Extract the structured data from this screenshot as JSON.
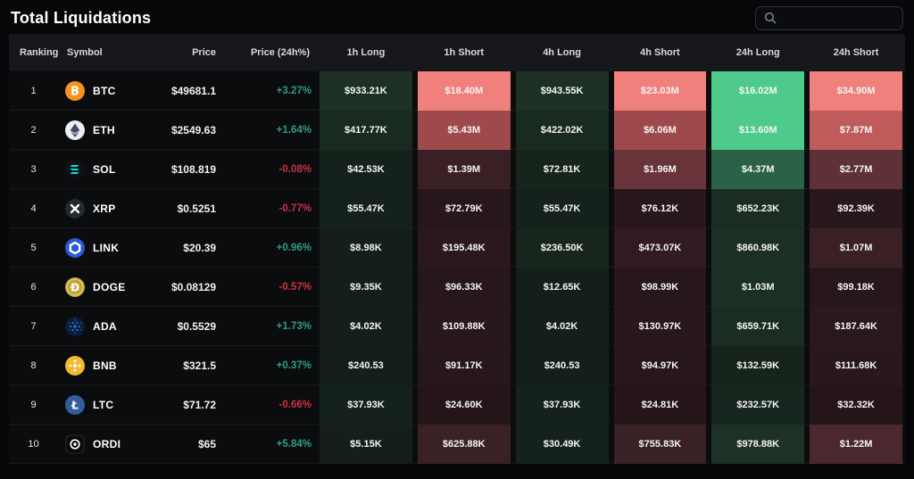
{
  "page": {
    "title": "Total Liquidations"
  },
  "search": {
    "value": "",
    "icon": "search-icon"
  },
  "colors": {
    "up_text": "#2f9e81",
    "down_text": "#ca3142",
    "header_bg": "#15171a",
    "row_bg": "#0b0c0e",
    "bright_short": "#f0807c",
    "bright_long": "#4ecb8a"
  },
  "table": {
    "headers": [
      "Ranking",
      "Symbol",
      "Price",
      "Price (24h%)",
      "1h Long",
      "1h Short",
      "4h Long",
      "4h Short",
      "24h Long",
      "24h Short"
    ],
    "rows": [
      {
        "rank": "1",
        "symbol": "BTC",
        "icon": "btc-icon",
        "icon_bg": "#f7931a",
        "icon_fg": "#ffffff",
        "price": "$49681.1",
        "change": "+3.27%",
        "direction": "up",
        "cells": [
          {
            "value": "$933.21K",
            "bg": "#1d3026"
          },
          {
            "value": "$18.40M",
            "bg": "#f0807c"
          },
          {
            "value": "$943.55K",
            "bg": "#1d3026"
          },
          {
            "value": "$23.03M",
            "bg": "#f0807c"
          },
          {
            "value": "$16.02M",
            "bg": "#4ecb8a"
          },
          {
            "value": "$34.90M",
            "bg": "#f0807c"
          }
        ]
      },
      {
        "rank": "2",
        "symbol": "ETH",
        "icon": "eth-icon",
        "icon_bg": "#eceef2",
        "icon_fg": "#454a6b",
        "price": "$2549.63",
        "change": "+1.64%",
        "direction": "up",
        "cells": [
          {
            "value": "$417.77K",
            "bg": "#192a20"
          },
          {
            "value": "$5.43M",
            "bg": "#9e4a4d"
          },
          {
            "value": "$422.02K",
            "bg": "#192a20"
          },
          {
            "value": "$6.06M",
            "bg": "#9e4a4d"
          },
          {
            "value": "$13.60M",
            "bg": "#4ecb8a"
          },
          {
            "value": "$7.87M",
            "bg": "#c05b5c"
          }
        ]
      },
      {
        "rank": "3",
        "symbol": "SOL",
        "icon": "sol-icon",
        "icon_bg": "#101114",
        "icon_fg": "#00e6a0",
        "icon_fg2": "#03e1ff",
        "price": "$108.819",
        "change": "-0.08%",
        "direction": "down",
        "cells": [
          {
            "value": "$42.53K",
            "bg": "#15221b"
          },
          {
            "value": "$1.39M",
            "bg": "#3a2024"
          },
          {
            "value": "$72.81K",
            "bg": "#16241c"
          },
          {
            "value": "$1.96M",
            "bg": "#693439"
          },
          {
            "value": "$4.37M",
            "bg": "#2b6247"
          },
          {
            "value": "$2.77M",
            "bg": "#5d3136"
          }
        ]
      },
      {
        "rank": "4",
        "symbol": "XRP",
        "icon": "xrp-icon",
        "icon_bg": "#23292f",
        "icon_fg": "#ffffff",
        "price": "$0.5251",
        "change": "-0.77%",
        "direction": "down",
        "cells": [
          {
            "value": "$55.47K",
            "bg": "#15221b"
          },
          {
            "value": "$72.79K",
            "bg": "#27161a"
          },
          {
            "value": "$55.47K",
            "bg": "#15221b"
          },
          {
            "value": "$76.12K",
            "bg": "#27161a"
          },
          {
            "value": "$652.23K",
            "bg": "#1b2d23"
          },
          {
            "value": "$92.39K",
            "bg": "#28171b"
          }
        ]
      },
      {
        "rank": "5",
        "symbol": "LINK",
        "icon": "link-icon",
        "icon_bg": "#2a5ada",
        "icon_fg": "#ffffff",
        "price": "$20.39",
        "change": "+0.96%",
        "direction": "up",
        "cells": [
          {
            "value": "$8.98K",
            "bg": "#141f19"
          },
          {
            "value": "$195.48K",
            "bg": "#2b181c"
          },
          {
            "value": "$236.50K",
            "bg": "#17251d"
          },
          {
            "value": "$473.07K",
            "bg": "#311b20"
          },
          {
            "value": "$860.98K",
            "bg": "#1c2f25"
          },
          {
            "value": "$1.07M",
            "bg": "#3a2024"
          }
        ]
      },
      {
        "rank": "6",
        "symbol": "DOGE",
        "icon": "doge-icon",
        "icon_bg": "#c2a633",
        "icon_fg": "#ffffff",
        "price": "$0.08129",
        "change": "-0.57%",
        "direction": "down",
        "cells": [
          {
            "value": "$9.35K",
            "bg": "#141f19"
          },
          {
            "value": "$96.33K",
            "bg": "#27161a"
          },
          {
            "value": "$12.65K",
            "bg": "#141f19"
          },
          {
            "value": "$98.99K",
            "bg": "#27161a"
          },
          {
            "value": "$1.03M",
            "bg": "#1c2f25"
          },
          {
            "value": "$99.18K",
            "bg": "#27161a"
          }
        ]
      },
      {
        "rank": "7",
        "symbol": "ADA",
        "icon": "ada-icon",
        "icon_bg": "#0b1d38",
        "icon_fg": "#2f6bd8",
        "price": "$0.5529",
        "change": "+1.73%",
        "direction": "up",
        "cells": [
          {
            "value": "$4.02K",
            "bg": "#141f19"
          },
          {
            "value": "$109.88K",
            "bg": "#28171b"
          },
          {
            "value": "$4.02K",
            "bg": "#141f19"
          },
          {
            "value": "$130.97K",
            "bg": "#28171b"
          },
          {
            "value": "$659.71K",
            "bg": "#1b2d23"
          },
          {
            "value": "$187.64K",
            "bg": "#2b181c"
          }
        ]
      },
      {
        "rank": "8",
        "symbol": "BNB",
        "icon": "bnb-icon",
        "icon_bg": "#f3ba2f",
        "icon_fg": "#ffffff",
        "price": "$321.5",
        "change": "+0.37%",
        "direction": "up",
        "cells": [
          {
            "value": "$240.53",
            "bg": "#141f19"
          },
          {
            "value": "$91.17K",
            "bg": "#27161a"
          },
          {
            "value": "$240.53",
            "bg": "#141f19"
          },
          {
            "value": "$94.97K",
            "bg": "#27161a"
          },
          {
            "value": "$132.59K",
            "bg": "#16241c"
          },
          {
            "value": "$111.68K",
            "bg": "#28171b"
          }
        ]
      },
      {
        "rank": "9",
        "symbol": "LTC",
        "icon": "ltc-icon",
        "icon_bg": "#345d9d",
        "icon_fg": "#ffffff",
        "price": "$71.72",
        "change": "-0.66%",
        "direction": "down",
        "cells": [
          {
            "value": "$37.93K",
            "bg": "#15221b"
          },
          {
            "value": "$24.60K",
            "bg": "#251519"
          },
          {
            "value": "$37.93K",
            "bg": "#15221b"
          },
          {
            "value": "$24.81K",
            "bg": "#251519"
          },
          {
            "value": "$232.57K",
            "bg": "#17261e"
          },
          {
            "value": "$32.32K",
            "bg": "#251519"
          }
        ]
      },
      {
        "rank": "10",
        "symbol": "ORDI",
        "icon": "ordi-icon",
        "icon_bg": "#0a0a0a",
        "icon_fg": "#ffffff",
        "price": "$65",
        "change": "+5.84%",
        "direction": "up",
        "cells": [
          {
            "value": "$5.15K",
            "bg": "#141f19"
          },
          {
            "value": "$625.88K",
            "bg": "#3a2125"
          },
          {
            "value": "$30.49K",
            "bg": "#15221b"
          },
          {
            "value": "$755.83K",
            "bg": "#3a2125"
          },
          {
            "value": "$978.88K",
            "bg": "#1d3127"
          },
          {
            "value": "$1.22M",
            "bg": "#4b282e"
          }
        ]
      }
    ]
  }
}
